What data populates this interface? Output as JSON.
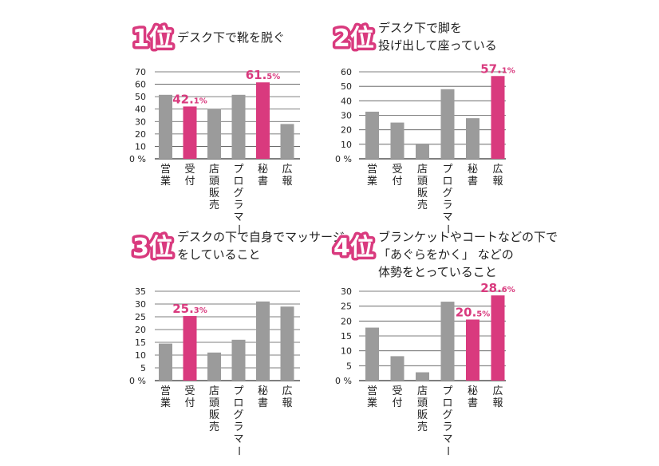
{
  "colors": {
    "highlight": "#d93a7e",
    "neutral": "#9b9b9b",
    "grid": "#555555",
    "badge": "#d93a7e"
  },
  "chart_data": [
    {
      "type": "bar",
      "rank": "1位",
      "title_lines": [
        "デスク下で靴を脱ぐ"
      ],
      "categories": [
        "営業",
        "受付",
        "店頭販売",
        "プログラマー",
        "秘書",
        "広報"
      ],
      "values": [
        51.5,
        42.1,
        40,
        51.5,
        61.5,
        28
      ],
      "highlight": [
        1,
        4
      ],
      "labels": [
        null,
        {
          "main": "42.",
          "small": "1%"
        },
        null,
        null,
        {
          "main": "61.",
          "small": "5%"
        },
        null
      ],
      "yticks": [
        0,
        10,
        20,
        30,
        40,
        50,
        60,
        70
      ],
      "ylim": [
        0,
        70
      ],
      "zero_label": "0 %"
    },
    {
      "type": "bar",
      "rank": "2位",
      "title_lines": [
        "デスク下で脚を",
        "投げ出して座っている"
      ],
      "categories": [
        "営業",
        "受付",
        "店頭販売",
        "プログラマー",
        "秘書",
        "広報"
      ],
      "values": [
        32.5,
        25,
        10.5,
        48,
        28,
        57.1
      ],
      "highlight": [
        5
      ],
      "labels": [
        null,
        null,
        null,
        null,
        null,
        {
          "main": "57.",
          "small": "1%"
        }
      ],
      "yticks": [
        0,
        10,
        20,
        30,
        40,
        50,
        60
      ],
      "ylim": [
        0,
        60
      ],
      "zero_label": "0 %"
    },
    {
      "type": "bar",
      "rank": "3位",
      "title_lines": [
        "デスクの下で自身でマッサージ",
        "をしていること"
      ],
      "categories": [
        "営業",
        "受付",
        "店頭販売",
        "プログラマー",
        "秘書",
        "広報"
      ],
      "values": [
        14.5,
        25.3,
        11,
        16,
        31,
        29
      ],
      "highlight": [
        1
      ],
      "labels": [
        null,
        {
          "main": "25.",
          "small": "3%"
        },
        null,
        null,
        null,
        null
      ],
      "yticks": [
        0,
        5,
        10,
        15,
        20,
        25,
        30,
        35
      ],
      "ylim": [
        0,
        35
      ],
      "zero_label": "0 %"
    },
    {
      "type": "bar",
      "rank": "4位",
      "title_lines": [
        "ブランケットやコートなどの下で",
        "「あぐらをかく」 などの",
        "体勢をとっていること"
      ],
      "categories": [
        "営業",
        "受付",
        "店頭販売",
        "プログラマー",
        "秘書",
        "広報"
      ],
      "values": [
        17.8,
        8.2,
        2.8,
        26.5,
        20.5,
        28.6
      ],
      "highlight": [
        4,
        5
      ],
      "labels": [
        null,
        null,
        null,
        null,
        {
          "main": "20.",
          "small": "5%"
        },
        {
          "main": "28.",
          "small": "6%"
        }
      ],
      "yticks": [
        0,
        5,
        10,
        15,
        20,
        25,
        30
      ],
      "ylim": [
        0,
        30
      ],
      "zero_label": "0 %"
    }
  ]
}
